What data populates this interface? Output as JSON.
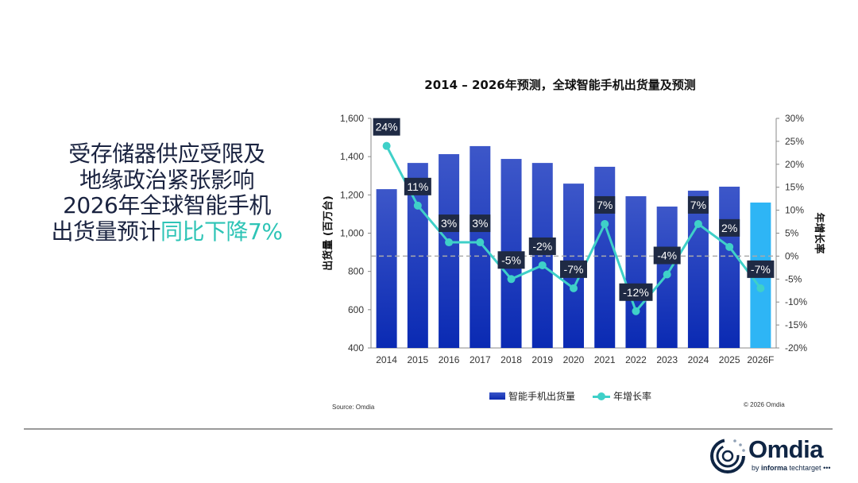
{
  "headline": {
    "line1": "受存储器供应受限及",
    "line2": "地缘政治紧张影响",
    "line3": "2026年全球智能手机",
    "line4_a": "出货量预计",
    "line4_b": "同比下降7%"
  },
  "footer": {
    "source": "Source: Omdia",
    "copyright": "© 2026 Omdia"
  },
  "logo": {
    "name": "Omdia",
    "sub_a": "by ",
    "sub_b": "informa",
    "sub_c": " techtarget"
  },
  "colors": {
    "bar": "#1d3cc0",
    "bar_forecast": "#2eb5f5",
    "line": "#3fd0c8",
    "label_bg": "#1f2a44",
    "text": "#1a2340",
    "accent": "#2ec4b6"
  },
  "chart_data": {
    "type": "bar+line",
    "title": "2014 – 2026年预测，全球智能手机出货量及预测",
    "categories": [
      "2014",
      "2015",
      "2016",
      "2017",
      "2018",
      "2019",
      "2020",
      "2021",
      "2022",
      "2023",
      "2024",
      "2025",
      "2026F"
    ],
    "series": [
      {
        "name": "智能手机出货量",
        "type": "bar",
        "axis": "left",
        "values": [
          1230,
          1367,
          1413,
          1455,
          1388,
          1367,
          1259,
          1347,
          1193,
          1139,
          1222,
          1243,
          1160
        ]
      },
      {
        "name": "年增长率",
        "type": "line",
        "axis": "right",
        "values": [
          24,
          11,
          3,
          3,
          -5,
          -2,
          -7,
          7,
          -12,
          -4,
          7,
          2,
          -7
        ],
        "labels": [
          "24%",
          "11%",
          "3%",
          "3%",
          "-5%",
          "-2%",
          "-7%",
          "7%",
          "-12%",
          "-4%",
          "7%",
          "2%",
          "-7%"
        ]
      }
    ],
    "ylabel": "出货量 (百万台)",
    "y2label": "年增长率",
    "ylim": [
      400,
      1600
    ],
    "y2lim": [
      -20,
      30
    ],
    "yticks": [
      "400",
      "600",
      "800",
      "1,000",
      "1,200",
      "1,400",
      "1,600"
    ],
    "y2ticks": [
      "-20%",
      "-15%",
      "-10%",
      "-5%",
      "0%",
      "5%",
      "10%",
      "15%",
      "20%",
      "25%",
      "30%"
    ],
    "forecast_category": "2026F",
    "zero_line": "dashed",
    "legend": "bottom"
  }
}
